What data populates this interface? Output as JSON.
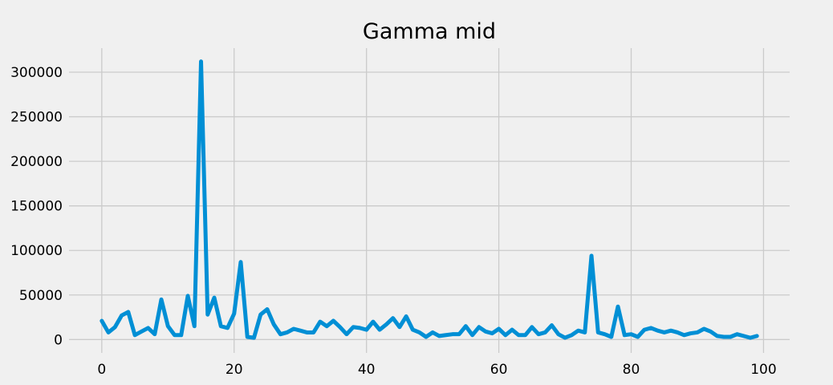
{
  "chart_data": {
    "type": "line",
    "title": "Gamma mid",
    "xlabel": "",
    "ylabel": "",
    "xlim": [
      -4.95,
      103.95
    ],
    "ylim": [
      -15000,
      327000
    ],
    "x_ticks": [
      0,
      20,
      40,
      60,
      80,
      100
    ],
    "y_ticks": [
      0,
      50000,
      100000,
      150000,
      200000,
      250000,
      300000
    ],
    "grid": true,
    "series": [
      {
        "color": "#008fd5",
        "x": [
          0,
          1,
          2,
          3,
          4,
          5,
          6,
          7,
          8,
          9,
          10,
          11,
          12,
          13,
          14,
          15,
          16,
          17,
          18,
          19,
          20,
          21,
          22,
          23,
          24,
          25,
          26,
          27,
          28,
          29,
          30,
          31,
          32,
          33,
          34,
          35,
          36,
          37,
          38,
          39,
          40,
          41,
          42,
          43,
          44,
          45,
          46,
          47,
          48,
          49,
          50,
          51,
          52,
          53,
          54,
          55,
          56,
          57,
          58,
          59,
          60,
          61,
          62,
          63,
          64,
          65,
          66,
          67,
          68,
          69,
          70,
          71,
          72,
          73,
          74,
          75,
          76,
          77,
          78,
          79,
          80,
          81,
          82,
          83,
          84,
          85,
          86,
          87,
          88,
          89,
          90,
          91,
          92,
          93,
          94,
          95,
          96,
          97,
          98,
          99
        ],
        "values": [
          21000,
          8000,
          14000,
          27000,
          31000,
          5000,
          9000,
          13000,
          6000,
          45000,
          15000,
          5000,
          5000,
          49000,
          15000,
          312000,
          28000,
          47000,
          15000,
          13000,
          29000,
          87000,
          3000,
          2000,
          28000,
          34000,
          17000,
          6000,
          8000,
          12000,
          10000,
          8000,
          8000,
          20000,
          15000,
          21000,
          14000,
          6000,
          14000,
          13000,
          11000,
          20000,
          11000,
          17000,
          24000,
          14000,
          26000,
          11000,
          8000,
          3000,
          8000,
          4000,
          5000,
          6000,
          6000,
          15000,
          5000,
          14000,
          9000,
          7000,
          12000,
          5000,
          11000,
          5000,
          5000,
          14000,
          6000,
          8000,
          16000,
          6000,
          2000,
          5000,
          10000,
          8000,
          94000,
          8000,
          6000,
          3000,
          37000,
          5000,
          6000,
          3000,
          11000,
          13000,
          10000,
          8000,
          10000,
          8000,
          5000,
          7000,
          8000,
          12000,
          9000,
          4000,
          3000,
          3000,
          6000,
          4000,
          2000,
          4000
        ]
      }
    ]
  }
}
